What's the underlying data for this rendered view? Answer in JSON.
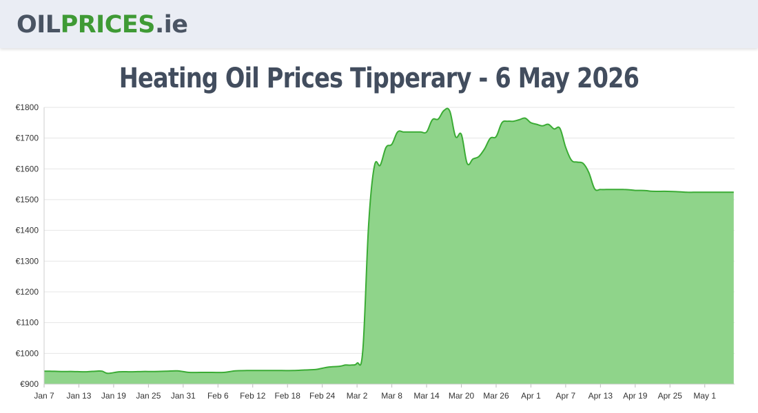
{
  "header": {
    "logo_part1": "OIL",
    "logo_part2": "PRICES",
    "logo_part3": ".ie"
  },
  "page": {
    "title": "Heating Oil Prices Tipperary - 6 May 2026"
  },
  "colors": {
    "fill": "#8fd48a",
    "stroke": "#3aab34",
    "grid": "#e4e4e4",
    "logo_gray": "#4a5463",
    "logo_green": "#3f9a35"
  },
  "chart_data": {
    "type": "area",
    "title": "",
    "xlabel": "",
    "ylabel": "",
    "grid": true,
    "ylim": [
      900,
      1800
    ],
    "y_ticks": [
      "€900",
      "€1000",
      "€1100",
      "€1200",
      "€1300",
      "€1400",
      "€1500",
      "€1600",
      "€1700",
      "€1800"
    ],
    "x_ticks": [
      "Jan 7",
      "Jan 13",
      "Jan 19",
      "Jan 25",
      "Jan 31",
      "Feb 6",
      "Feb 12",
      "Feb 18",
      "Feb 24",
      "Mar 2",
      "Mar 8",
      "Mar 14",
      "Mar 20",
      "Mar 26",
      "Apr 1",
      "Apr 7",
      "Apr 13",
      "Apr 19",
      "Apr 25",
      "May 1"
    ],
    "series": [
      {
        "x": [
          "Jan 7",
          "Jan 8",
          "Jan 10",
          "Jan 12",
          "Jan 14",
          "Jan 16",
          "Jan 17",
          "Jan 18",
          "Jan 20",
          "Jan 22",
          "Jan 24",
          "Jan 26",
          "Jan 28",
          "Jan 30",
          "Feb 1",
          "Feb 3",
          "Feb 5",
          "Feb 7",
          "Feb 9",
          "Feb 11",
          "Feb 13",
          "Feb 15",
          "Feb 17",
          "Feb 19",
          "Feb 21",
          "Feb 23",
          "Feb 25",
          "Feb 27",
          "Feb 28",
          "Mar 1",
          "Mar 2",
          "Mar 3",
          "Mar 4",
          "Mar 5",
          "Mar 6",
          "Mar 7",
          "Mar 8",
          "Mar 9",
          "Mar 10",
          "Mar 11",
          "Mar 12",
          "Mar 13",
          "Mar 14",
          "Mar 15",
          "Mar 16",
          "Mar 17",
          "Mar 18",
          "Mar 19",
          "Mar 20",
          "Mar 21",
          "Mar 22",
          "Mar 23",
          "Mar 24",
          "Mar 25",
          "Mar 26",
          "Mar 27",
          "Mar 28",
          "Mar 29",
          "Mar 30",
          "Mar 31",
          "Apr 1",
          "Apr 2",
          "Apr 3",
          "Apr 4",
          "Apr 5",
          "Apr 6",
          "Apr 7",
          "Apr 8",
          "Apr 9",
          "Apr 10",
          "Apr 11",
          "Apr 12",
          "Apr 13",
          "Apr 14",
          "Apr 15",
          "Apr 16",
          "Apr 17",
          "Apr 18",
          "Apr 19",
          "Apr 20",
          "Apr 21",
          "Apr 22",
          "Apr 24",
          "Apr 26",
          "Apr 28",
          "Apr 29",
          "Apr 30",
          "May 2",
          "May 4",
          "May 5",
          "May 6"
        ],
        "values": [
          942,
          942,
          941,
          941,
          940,
          942,
          942,
          935,
          940,
          940,
          941,
          941,
          942,
          943,
          938,
          938,
          938,
          938,
          943,
          944,
          944,
          944,
          944,
          944,
          946,
          948,
          955,
          958,
          962,
          962,
          968,
          1010,
          1420,
          1610,
          1612,
          1670,
          1680,
          1720,
          1720,
          1720,
          1720,
          1720,
          1720,
          1760,
          1762,
          1790,
          1788,
          1705,
          1712,
          1618,
          1632,
          1640,
          1665,
          1700,
          1705,
          1750,
          1755,
          1755,
          1760,
          1765,
          1750,
          1745,
          1740,
          1745,
          1730,
          1732,
          1670,
          1628,
          1622,
          1618,
          1588,
          1535,
          1533,
          1533,
          1533,
          1533,
          1533,
          1532,
          1530,
          1530,
          1529,
          1527,
          1527,
          1526,
          1524,
          1524,
          1524,
          1524,
          1524,
          1524,
          1524
        ]
      }
    ]
  }
}
